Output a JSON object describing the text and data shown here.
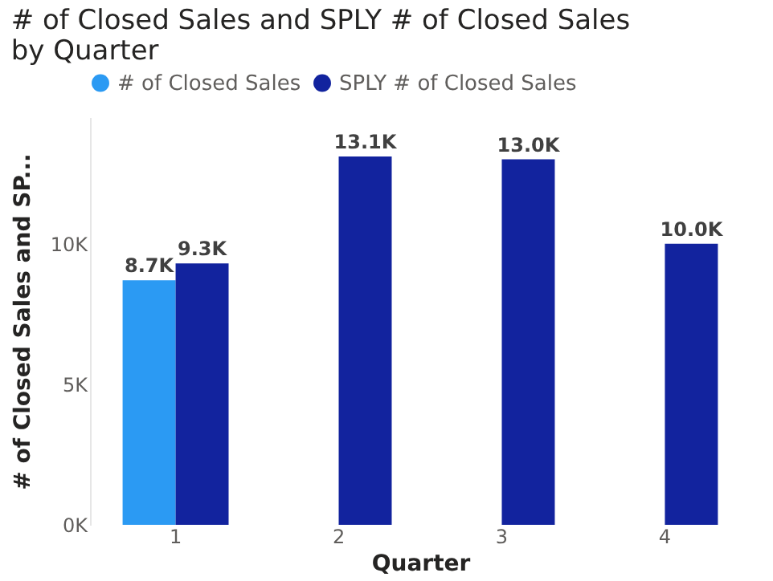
{
  "chart_data": {
    "type": "bar",
    "title": "# of Closed Sales and SPLY # of Closed Sales by Quarter",
    "xlabel": "Quarter",
    "ylabel": "# of Closed Sales and SP...",
    "categories": [
      "1",
      "2",
      "3",
      "4"
    ],
    "series": [
      {
        "name": "# of Closed Sales",
        "color": "#2b9af3",
        "values": [
          8700,
          null,
          null,
          null
        ],
        "value_labels": [
          "8.7K",
          null,
          null,
          null
        ]
      },
      {
        "name": "SPLY # of Closed Sales",
        "color": "#12239e",
        "values": [
          9300,
          13100,
          13000,
          10000
        ],
        "value_labels": [
          "9.3K",
          "13.1K",
          "13.0K",
          "10.0K"
        ]
      }
    ],
    "ylim": [
      0,
      14500
    ],
    "yticks": [
      {
        "value": 0,
        "label": "0K"
      },
      {
        "value": 5000,
        "label": "5K"
      },
      {
        "value": 10000,
        "label": "10K"
      }
    ],
    "grid": false,
    "legend": "top left"
  }
}
